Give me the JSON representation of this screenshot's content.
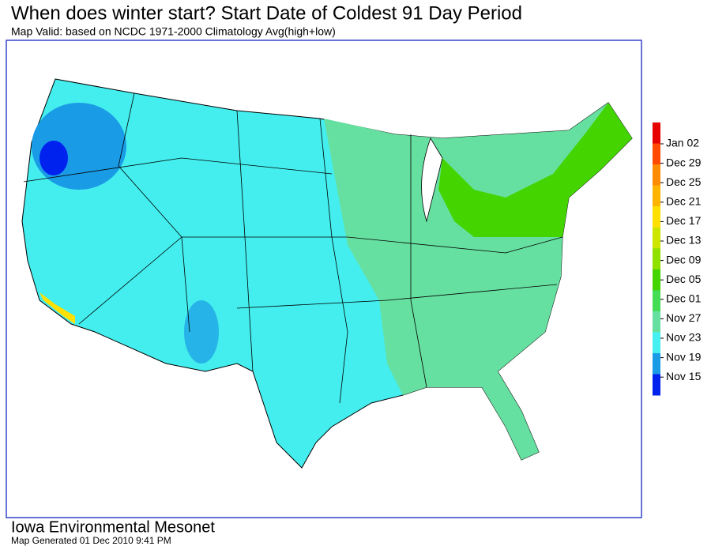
{
  "header": {
    "title": "When does winter start?  Start Date of Coldest 91 Day Period",
    "subtitle": "Map Valid: based on NCDC 1971-2000 Climatology Avg(high+low)"
  },
  "legend": {
    "items": [
      {
        "label": "Jan 02",
        "color": "#e60000"
      },
      {
        "label": "Dec 29",
        "color": "#ff4a00"
      },
      {
        "label": "Dec 25",
        "color": "#ff8c00"
      },
      {
        "label": "Dec 21",
        "color": "#ffb400"
      },
      {
        "label": "Dec 17",
        "color": "#ffe000"
      },
      {
        "label": "Dec 13",
        "color": "#cce600"
      },
      {
        "label": "Dec 09",
        "color": "#90e000"
      },
      {
        "label": "Dec 05",
        "color": "#44d400"
      },
      {
        "label": "Dec 01",
        "color": "#44dd55"
      },
      {
        "label": "Nov 27",
        "color": "#66e0a0"
      },
      {
        "label": "Nov 23",
        "color": "#44f0f0"
      },
      {
        "label": "Nov 19",
        "color": "#1a9be6"
      },
      {
        "label": "Nov 15",
        "color": "#0022ee"
      }
    ]
  },
  "footer": {
    "organization": "Iowa Environmental Mesonet",
    "generated": "Map Generated 01 Dec 2010 9:41 PM"
  }
}
